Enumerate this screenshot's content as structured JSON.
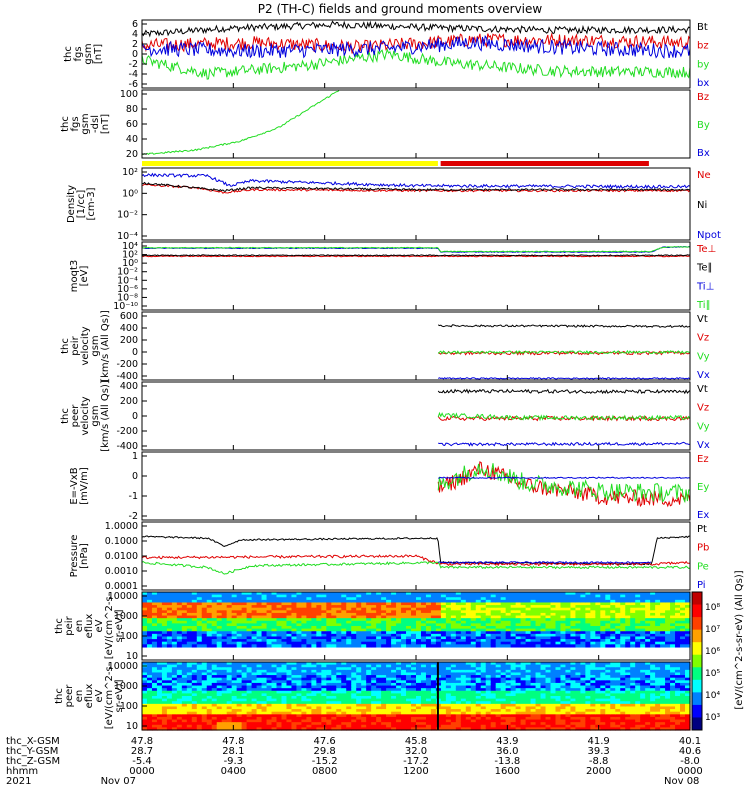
{
  "title": "P2 (TH-C) fields and ground moments overview",
  "colors": {
    "black": "#000000",
    "red": "#e00000",
    "green": "#22dd22",
    "blue": "#0000dd",
    "yellow": "#ffff00",
    "barred": "#dd0000"
  },
  "chart_data": [
    {
      "type": "line",
      "panel": "fgs",
      "ylabel": [
        "thc",
        "fgs",
        "gsm",
        "[nT]"
      ],
      "ylim": [
        -6,
        6
      ],
      "yticks": [
        "6",
        "4",
        "2",
        "0",
        "-2",
        "-4",
        "-6"
      ],
      "series": [
        {
          "name": "Bt",
          "color": "black",
          "levels": [
            [
              0,
              3.5
            ],
            [
              0.15,
              4.5
            ],
            [
              0.35,
              5.2
            ],
            [
              0.55,
              4.6
            ],
            [
              0.75,
              4.2
            ],
            [
              1,
              4.3
            ]
          ],
          "noise": 0.6
        },
        {
          "name": "bz",
          "color": "red",
          "levels": [
            [
              0,
              1.5
            ],
            [
              0.2,
              2
            ],
            [
              0.4,
              1.2
            ],
            [
              0.6,
              2.5
            ],
            [
              0.8,
              2.4
            ],
            [
              1,
              2.0
            ]
          ],
          "noise": 1.2
        },
        {
          "name": "by",
          "color": "green",
          "levels": [
            [
              0,
              -1
            ],
            [
              0.12,
              -3.5
            ],
            [
              0.3,
              -2
            ],
            [
              0.45,
              0
            ],
            [
              0.55,
              -1.5
            ],
            [
              0.75,
              -3
            ],
            [
              1,
              -3.2
            ]
          ],
          "noise": 1.0
        },
        {
          "name": "bx",
          "color": "blue",
          "levels": [
            [
              0,
              1
            ],
            [
              0.2,
              0.5
            ],
            [
              0.45,
              1
            ],
            [
              0.6,
              2
            ],
            [
              0.8,
              1
            ],
            [
              1,
              0.5
            ]
          ],
          "noise": 1.3
        }
      ]
    },
    {
      "type": "line",
      "panel": "fgs_dsl",
      "ylabel": [
        "thc",
        "fgs",
        "gsm",
        "-dsl",
        "[nT]"
      ],
      "ylim": [
        0,
        100
      ],
      "yticks": [
        "100",
        "80",
        "60",
        "40",
        "20"
      ],
      "series": [
        {
          "name": "Bz",
          "color": "red",
          "levels": [],
          "noise": 0
        },
        {
          "name": "By",
          "color": "green",
          "levels": [
            [
              0,
              5
            ],
            [
              0.1,
              12
            ],
            [
              0.18,
              25
            ],
            [
              0.25,
              45
            ],
            [
              0.3,
              70
            ],
            [
              0.36,
              100
            ]
          ],
          "noise": 1.2
        },
        {
          "name": "Bx",
          "color": "blue",
          "levels": [],
          "noise": 0
        }
      ]
    },
    {
      "type": "line",
      "panel": "density",
      "log": true,
      "ylabel": [
        "Density",
        "[1/cc]",
        "[cm-3]"
      ],
      "ylim": [
        -5,
        2.3
      ],
      "yticks": [
        "10²",
        "10⁰",
        "10⁻²",
        "10⁻⁴"
      ],
      "series": [
        {
          "name": "Ne",
          "color": "red",
          "levels": [
            [
              0,
              0.6
            ],
            [
              0.1,
              0.3
            ],
            [
              0.15,
              -0.2
            ],
            [
              0.2,
              0.1
            ],
            [
              0.5,
              0
            ],
            [
              1,
              0
            ]
          ],
          "noise": 0.1
        },
        {
          "name": "Ni",
          "color": "black",
          "levels": [
            [
              0,
              0.8
            ],
            [
              0.15,
              0
            ],
            [
              0.2,
              0.3
            ],
            [
              0.5,
              0.1
            ],
            [
              1,
              0.1
            ]
          ],
          "noise": 0.1
        },
        {
          "name": "Npot",
          "color": "blue",
          "levels": [
            [
              0,
              1.6
            ],
            [
              0.12,
              1.5
            ],
            [
              0.16,
              0.5
            ],
            [
              0.2,
              1
            ],
            [
              0.5,
              0.5
            ],
            [
              1,
              0.4
            ]
          ],
          "noise": 0.15
        }
      ]
    },
    {
      "type": "line",
      "panel": "temperature",
      "log": true,
      "ylabel": [
        "moqt3",
        "[eV]"
      ],
      "ylim": [
        -10,
        4.3
      ],
      "yticks": [
        "10⁴",
        "10²",
        "10⁰",
        "10⁻²",
        "10⁻⁴",
        "10⁻⁶",
        "10⁻⁸",
        "10⁻¹⁰"
      ],
      "series": [
        {
          "name": "Te⊥",
          "color": "red",
          "levels": [
            [
              0,
              1.3
            ],
            [
              1,
              1.3
            ]
          ],
          "noise": 0.1
        },
        {
          "name": "Te∥",
          "color": "black",
          "levels": [
            [
              0,
              1.5
            ],
            [
              1,
              1.5
            ]
          ],
          "noise": 0.1
        },
        {
          "name": "Ti⊥",
          "color": "blue",
          "levels": [
            [
              0,
              3
            ],
            [
              0.54,
              3
            ],
            [
              0.545,
              2.2
            ],
            [
              0.93,
              2.2
            ],
            [
              0.95,
              3.2
            ],
            [
              1,
              3.3
            ]
          ],
          "noise": 0.08
        },
        {
          "name": "Ti∥",
          "color": "green",
          "levels": [
            [
              0,
              3.1
            ],
            [
              0.54,
              3.1
            ],
            [
              0.545,
              2.3
            ],
            [
              0.93,
              2.3
            ],
            [
              0.95,
              3.2
            ],
            [
              1,
              3.3
            ]
          ],
          "noise": 0.08
        }
      ]
    },
    {
      "type": "line",
      "panel": "peir_velocity",
      "ylabel": [
        "thc",
        "peir",
        "velocity",
        "gsm",
        "[km/s (All Qs)]"
      ],
      "ylim": [
        -420,
        620
      ],
      "yticks": [
        "600",
        "400",
        "200",
        "0",
        "-200",
        "-400"
      ],
      "series": [
        {
          "name": "Vt",
          "color": "black",
          "levels": [
            [
              0.54,
              410
            ],
            [
              1,
              400
            ]
          ],
          "noise": 15
        },
        {
          "name": "Vz",
          "color": "red",
          "levels": [
            [
              0.54,
              -10
            ],
            [
              1,
              -5
            ]
          ],
          "noise": 25
        },
        {
          "name": "Vy",
          "color": "green",
          "levels": [
            [
              0.54,
              5
            ],
            [
              1,
              5
            ]
          ],
          "noise": 20
        },
        {
          "name": "Vx",
          "color": "blue",
          "levels": [
            [
              0.54,
              -395
            ],
            [
              1,
              -395
            ]
          ],
          "noise": 10
        }
      ]
    },
    {
      "type": "line",
      "panel": "peer_velocity",
      "ylabel": [
        "thc",
        "peer",
        "velocity",
        "gsm",
        "[km/s (All Qs)]"
      ],
      "ylim": [
        -450,
        520
      ],
      "yticks": [
        "400",
        "200",
        "0",
        "-200",
        "-400"
      ],
      "series": [
        {
          "name": "Vt",
          "color": "black",
          "levels": [
            [
              0.54,
              390
            ],
            [
              1,
              380
            ]
          ],
          "noise": 25
        },
        {
          "name": "Vz",
          "color": "red",
          "levels": [
            [
              0.54,
              0
            ],
            [
              1,
              0
            ]
          ],
          "noise": 30
        },
        {
          "name": "Vy",
          "color": "green",
          "levels": [
            [
              0.54,
              50
            ],
            [
              0.7,
              10
            ],
            [
              1,
              10
            ]
          ],
          "noise": 30
        },
        {
          "name": "Vx",
          "color": "blue",
          "levels": [
            [
              0.54,
              -370
            ],
            [
              1,
              -360
            ]
          ],
          "noise": 20
        }
      ]
    },
    {
      "type": "line",
      "panel": "efield",
      "ylabel": [
        "E=-VxB",
        "[mV/m]"
      ],
      "ylim": [
        -2,
        1.3
      ],
      "yticks": [
        "1",
        "0",
        "-1",
        "-2"
      ],
      "series": [
        {
          "name": "Ez",
          "color": "red",
          "levels": [
            [
              0.54,
              -0.5
            ],
            [
              0.62,
              0.5
            ],
            [
              0.7,
              -0.3
            ],
            [
              0.85,
              -0.9
            ],
            [
              1,
              -1
            ]
          ],
          "noise": 0.4
        },
        {
          "name": "Ey",
          "color": "green",
          "levels": [
            [
              0.54,
              -0.3
            ],
            [
              0.62,
              0.6
            ],
            [
              0.7,
              -0.2
            ],
            [
              0.85,
              -0.6
            ],
            [
              1,
              -0.7
            ]
          ],
          "noise": 0.45
        },
        {
          "name": "Ex",
          "color": "blue",
          "levels": [
            [
              0.54,
              0.05
            ],
            [
              1,
              0.05
            ]
          ],
          "noise": 0.03
        }
      ]
    },
    {
      "type": "line",
      "panel": "pressure",
      "log": true,
      "ylabel": [
        "Pressure",
        "[nPa]"
      ],
      "ylim": [
        -4,
        0.2
      ],
      "yticks": [
        "1.0000",
        "0.1000",
        "0.0100",
        "0.0010",
        "0.0001"
      ],
      "series": [
        {
          "name": "Pt",
          "color": "black",
          "levels": [
            [
              0,
              -0.7
            ],
            [
              0.12,
              -0.8
            ],
            [
              0.15,
              -1.3
            ],
            [
              0.18,
              -0.9
            ],
            [
              0.54,
              -0.8
            ],
            [
              0.545,
              -2.3
            ],
            [
              0.93,
              -2.4
            ],
            [
              0.94,
              -0.8
            ],
            [
              1,
              -0.7
            ]
          ],
          "noise": 0.05
        },
        {
          "name": "Pb",
          "color": "red",
          "levels": [
            [
              0,
              -2
            ],
            [
              0.5,
              -1.9
            ],
            [
              0.545,
              -2.4
            ],
            [
              0.93,
              -2.4
            ],
            [
              1,
              -2.3
            ]
          ],
          "noise": 0.08
        },
        {
          "name": "Pe",
          "color": "green",
          "levels": [
            [
              0,
              -2.3
            ],
            [
              0.12,
              -2.6
            ],
            [
              0.15,
              -3
            ],
            [
              0.2,
              -2.5
            ],
            [
              0.54,
              -2.3
            ],
            [
              0.545,
              -2.6
            ],
            [
              1,
              -2.6
            ]
          ],
          "noise": 0.07
        },
        {
          "name": "Pi",
          "color": "blue",
          "levels": [
            [
              0.54,
              -2.3
            ],
            [
              0.93,
              -2.3
            ]
          ],
          "noise": 0.05
        }
      ]
    },
    {
      "type": "heatmap",
      "panel": "peir_spectrogram",
      "ylabel": [
        "thc",
        "peir",
        "en",
        "eflux",
        "eV",
        "[eV/(cm^2-s-",
        "sr-eV)]"
      ],
      "yticks": [
        "10000",
        "1000",
        "100",
        "10"
      ]
    },
    {
      "type": "heatmap",
      "panel": "peer_spectrogram",
      "ylabel": [
        "thc",
        "peer",
        "en",
        "eflux",
        "eV",
        "[eV/(cm^2-s-",
        "sr-eV)]"
      ],
      "yticks": [
        "10000",
        "1000",
        "100",
        "10"
      ]
    }
  ],
  "colorbar": {
    "label": "[eV/(cm^2-s-sr-eV) (All Qs)]",
    "ticks": [
      "10⁸",
      "10⁷",
      "10⁶",
      "10⁵",
      "10⁴",
      "10³"
    ]
  },
  "xaxis": {
    "row_labels": [
      "thc_X-GSM",
      "thc_Y-GSM",
      "thc_Z-GSM",
      "hhmm",
      "2021"
    ],
    "columns": [
      {
        "rows": [
          "47.8",
          "28.7",
          "-5.4",
          "0000",
          "Nov 07"
        ]
      },
      {
        "rows": [
          "47.8",
          "28.1",
          "-9.3",
          "0400",
          ""
        ]
      },
      {
        "rows": [
          "47.6",
          "29.8",
          "-15.2",
          "0800",
          ""
        ]
      },
      {
        "rows": [
          "45.8",
          "32.0",
          "-17.2",
          "1200",
          ""
        ]
      },
      {
        "rows": [
          "43.9",
          "36.0",
          "-13.8",
          "1600",
          ""
        ]
      },
      {
        "rows": [
          "41.9",
          "39.3",
          "-8.8",
          "2000",
          ""
        ]
      },
      {
        "rows": [
          "40.1",
          "40.6",
          "-8.0",
          "0000",
          "Nov 08"
        ]
      }
    ]
  }
}
